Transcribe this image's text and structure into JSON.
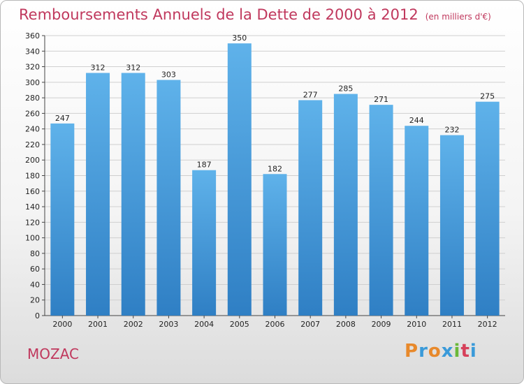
{
  "header": {
    "title": "Remboursements Annuels de la Dette de 2000 à 2012",
    "unit": "(en milliers d'€)"
  },
  "footer": {
    "municipality": "MOZAC",
    "logo_text": "Proxiti"
  },
  "colors": {
    "bar": "#3d8fd6",
    "bar_light": "#5aaee6",
    "title": "#c0385d",
    "grid": "#cfcfcf"
  },
  "chart_data": {
    "type": "bar",
    "title": "Remboursements Annuels de la Dette de 2000 à 2012",
    "subtitle": "(en milliers d'€)",
    "xlabel": "",
    "ylabel": "",
    "categories": [
      "2000",
      "2001",
      "2002",
      "2003",
      "2004",
      "2005",
      "2006",
      "2007",
      "2008",
      "2009",
      "2010",
      "2011",
      "2012"
    ],
    "values": [
      247,
      312,
      312,
      303,
      187,
      350,
      182,
      277,
      285,
      271,
      244,
      232,
      275
    ],
    "ylim": [
      0,
      360
    ],
    "yticks": [
      0,
      20,
      40,
      60,
      80,
      100,
      120,
      140,
      160,
      180,
      200,
      220,
      240,
      260,
      280,
      300,
      320,
      340,
      360
    ],
    "grid": true,
    "legend": "none"
  }
}
